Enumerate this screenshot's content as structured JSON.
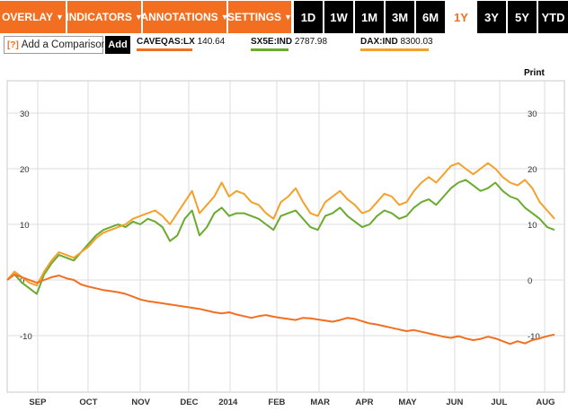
{
  "toolbar": {
    "menus": [
      {
        "label": "OVERLAY"
      },
      {
        "label": "INDICATORS"
      },
      {
        "label": "ANNOTATIONS"
      },
      {
        "label": "SETTINGS"
      }
    ],
    "ranges": [
      {
        "label": "1D",
        "active": false
      },
      {
        "label": "1W",
        "active": false
      },
      {
        "label": "1M",
        "active": false
      },
      {
        "label": "3M",
        "active": false
      },
      {
        "label": "6M",
        "active": false
      },
      {
        "label": "1Y",
        "active": true
      },
      {
        "label": "3Y",
        "active": false
      },
      {
        "label": "5Y",
        "active": false
      },
      {
        "label": "YTD",
        "active": false
      }
    ],
    "caret_glyph": "▼"
  },
  "compare": {
    "help_label": "[?]",
    "placeholder": "Add a Comparison",
    "add_label": "Add"
  },
  "legend": [
    {
      "symbol": "CAVEQAS:LX",
      "value": "140.64",
      "color": "#f26f21"
    },
    {
      "symbol": "SX5E:IND",
      "value": "2787.98",
      "color": "#6aab2e"
    },
    {
      "symbol": "DAX:IND",
      "value": "8300.03",
      "color": "#f3a12a"
    }
  ],
  "print_label": "Print",
  "chart_data": {
    "type": "line",
    "y_ticks": [
      30,
      20,
      10,
      0,
      -10
    ],
    "y_tick_labels": [
      "30",
      "20",
      "10",
      "0",
      "-10"
    ],
    "ylim": [
      -20,
      35
    ],
    "x_labels": [
      "SEP",
      "OCT",
      "NOV",
      "DEC",
      "2014",
      "FEB",
      "MAR",
      "APR",
      "MAY",
      "JUN",
      "JUL",
      "AUG"
    ],
    "grid": true,
    "series": [
      {
        "name": "CAVEQAS:LX",
        "color": "#f26f21",
        "values": [
          0,
          1,
          0.5,
          0,
          -0.5,
          0,
          0.5,
          0.8,
          0.3,
          0,
          -0.8,
          -1.2,
          -1.5,
          -1.8,
          -2,
          -2.2,
          -2.5,
          -3,
          -3.5,
          -3.8,
          -4,
          -4.2,
          -4.4,
          -4.6,
          -4.8,
          -5,
          -5.2,
          -5.5,
          -5.8,
          -6,
          -5.8,
          -6.2,
          -6.5,
          -6.8,
          -6.5,
          -6.3,
          -6.6,
          -6.8,
          -7,
          -7.2,
          -6.8,
          -6.9,
          -7.1,
          -7.3,
          -7.5,
          -7.2,
          -6.8,
          -7,
          -7.4,
          -7.8,
          -8,
          -8.3,
          -8.6,
          -8.9,
          -9.2,
          -9,
          -9.3,
          -9.6,
          -9.9,
          -10.2,
          -10.4,
          -10.1,
          -10.5,
          -10.8,
          -10.6,
          -10.2,
          -10.5,
          -11,
          -11.5,
          -11,
          -11.4,
          -10.8,
          -10.5,
          -10.1,
          -9.8
        ]
      },
      {
        "name": "SX5E:IND",
        "color": "#6aab2e",
        "values": [
          0,
          1,
          -0.5,
          -1.5,
          -2.5,
          1,
          3,
          4.5,
          4,
          3.5,
          5,
          6.5,
          8,
          9,
          9.5,
          10,
          9.5,
          10.5,
          10,
          11,
          10.5,
          9.5,
          7,
          8,
          11,
          12.5,
          8,
          9.5,
          12,
          13,
          11.5,
          12,
          12,
          11.5,
          11,
          10,
          9,
          11.5,
          12,
          12.5,
          11,
          9.5,
          9,
          11.5,
          12,
          13,
          11.5,
          10.5,
          9.5,
          10,
          11.5,
          12.5,
          12,
          11,
          11.5,
          13,
          14,
          14.5,
          13.5,
          15,
          16.5,
          17.5,
          18,
          17,
          16,
          16.5,
          17.5,
          16,
          15,
          14.5,
          13,
          12,
          11,
          9.5,
          9
        ]
      },
      {
        "name": "DAX:IND",
        "color": "#f3a12a",
        "values": [
          0,
          1.5,
          0.5,
          -0.5,
          -1,
          1.5,
          3.5,
          5,
          4.5,
          4,
          5,
          6,
          7.5,
          8.5,
          9,
          9.5,
          10,
          11,
          11.5,
          12,
          12.5,
          11.5,
          10,
          12,
          14,
          16,
          12,
          13.5,
          15,
          17.5,
          15,
          16,
          15.5,
          14,
          13.5,
          12,
          11,
          14,
          15,
          16.5,
          14,
          12,
          11.5,
          14,
          15,
          16,
          14.5,
          13.5,
          12,
          12.5,
          14,
          15.5,
          15,
          13.5,
          14,
          16,
          17.5,
          18.5,
          17.5,
          19,
          20.5,
          21,
          20,
          19,
          20,
          21,
          20,
          18.5,
          17.5,
          17,
          18,
          16.5,
          14,
          12.5,
          11
        ]
      }
    ]
  }
}
